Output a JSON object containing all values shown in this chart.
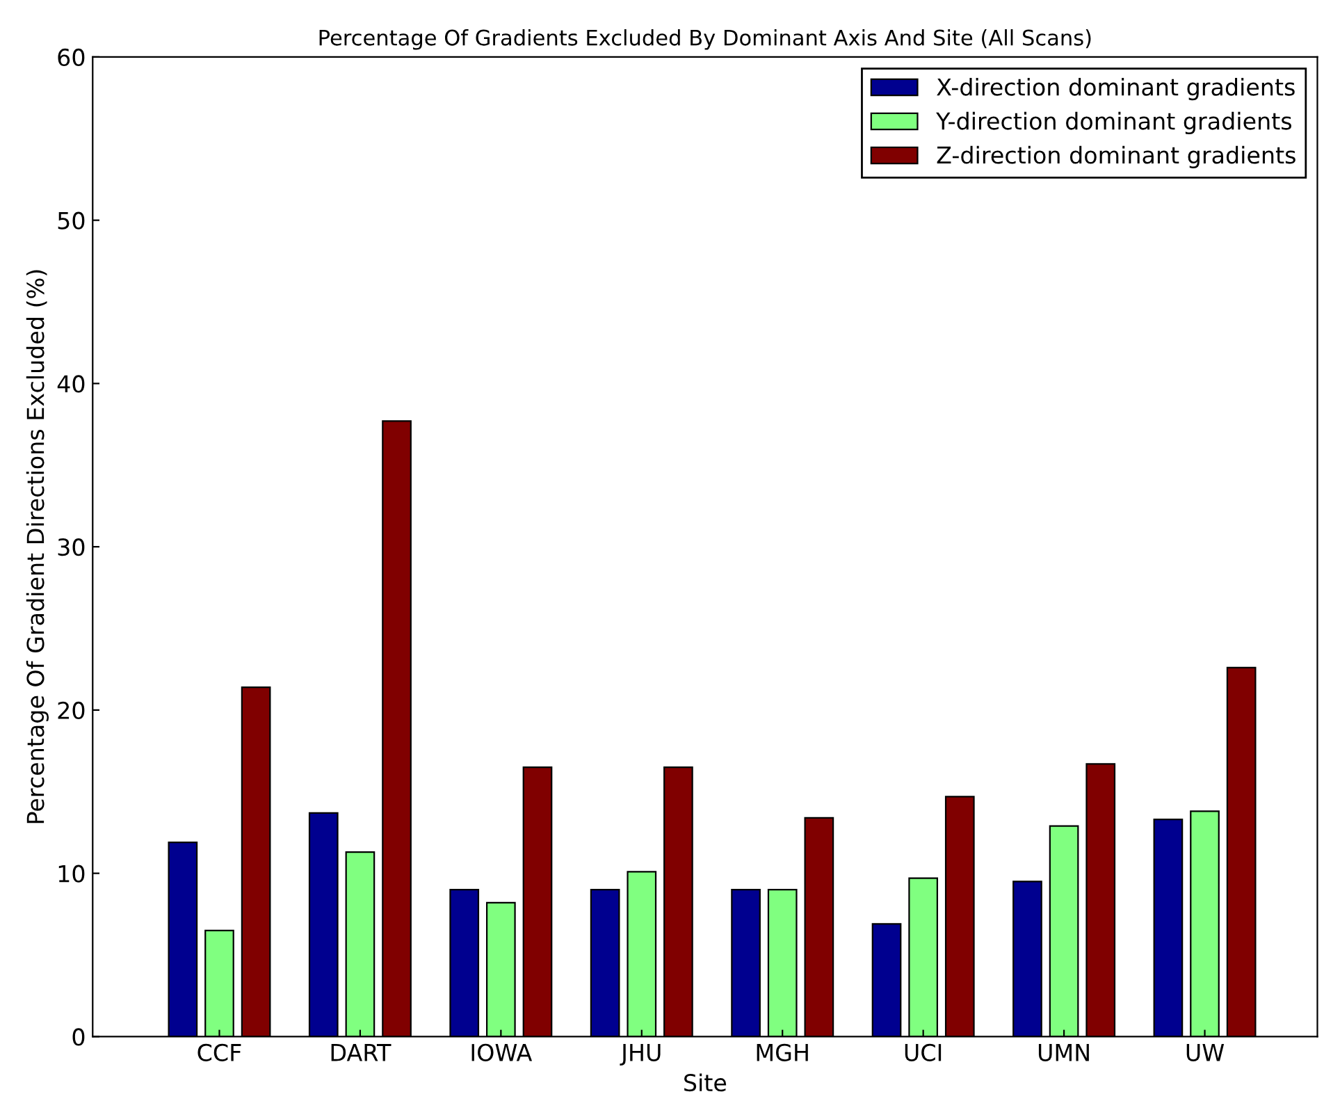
{
  "chart_data": {
    "type": "bar",
    "title": "Percentage Of Gradients Excluded By Dominant Axis And Site (All Scans)",
    "xlabel": "Site",
    "ylabel": "Percentage Of Gradient Directions Excluded (%)",
    "categories": [
      "CCF",
      "DART",
      "IOWA",
      "JHU",
      "MGH",
      "UCI",
      "UMN",
      "UW"
    ],
    "series": [
      {
        "name": "X-direction dominant gradients",
        "color": "#00008f",
        "values": [
          11.9,
          13.7,
          9.0,
          9.0,
          9.0,
          6.9,
          9.5,
          13.3
        ]
      },
      {
        "name": "Y-direction dominant gradients",
        "color": "#80ff80",
        "values": [
          6.5,
          11.3,
          8.2,
          10.1,
          9.0,
          9.7,
          12.9,
          13.8
        ]
      },
      {
        "name": "Z-direction dominant gradients",
        "color": "#800000",
        "values": [
          21.4,
          37.7,
          16.5,
          16.5,
          13.4,
          14.7,
          16.7,
          22.6
        ]
      }
    ],
    "ylim": [
      0,
      60
    ],
    "yticks": [
      0,
      10,
      20,
      30,
      40,
      50,
      60
    ],
    "grid": false,
    "legend": "top right"
  }
}
